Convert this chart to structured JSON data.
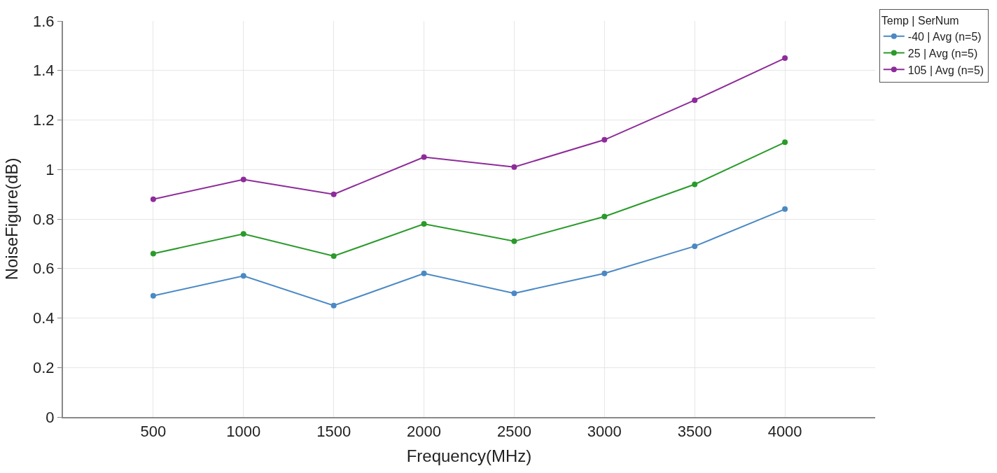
{
  "chart_data": {
    "type": "line",
    "xlabel": "Frequency(MHz)",
    "ylabel": "NoiseFigure(dB)",
    "legend_title": "Temp | SerNum",
    "x": [
      500,
      1000,
      1500,
      2000,
      2500,
      3000,
      3500,
      4000
    ],
    "series": [
      {
        "name": "-40 | Avg (n=5)",
        "color": "#4a89c4",
        "values": [
          0.49,
          0.57,
          0.45,
          0.58,
          0.5,
          0.58,
          0.69,
          0.84
        ]
      },
      {
        "name": "25 | Avg (n=5)",
        "color": "#2a9a2a",
        "values": [
          0.66,
          0.74,
          0.65,
          0.78,
          0.71,
          0.81,
          0.94,
          1.11
        ]
      },
      {
        "name": "105 | Avg (n=5)",
        "color": "#8e2b9a",
        "values": [
          0.88,
          0.96,
          0.9,
          1.05,
          1.01,
          1.12,
          1.28,
          1.45
        ]
      }
    ],
    "xlim": [
      0,
      4500
    ],
    "xticks": [
      500,
      1000,
      1500,
      2000,
      2500,
      3000,
      3500,
      4000
    ],
    "ylim": [
      0,
      1.6
    ],
    "yticks": [
      0,
      0.2,
      0.4,
      0.6,
      0.8,
      1,
      1.2,
      1.4,
      1.6
    ],
    "grid": true,
    "legend": "top right",
    "marker": "circle",
    "line_style": "solid"
  }
}
